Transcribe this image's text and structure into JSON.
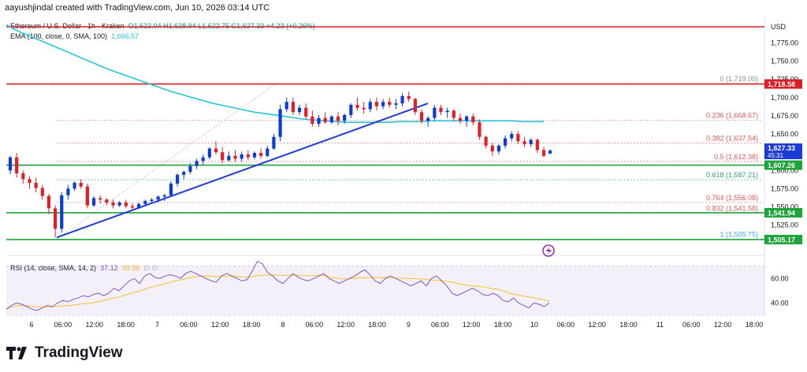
{
  "header": {
    "created_by": "aayushjindal created with TradingView.com, Jun 10, 2026 03:14 UTC"
  },
  "legend": {
    "symbol": "Ethereum / U.S. Dollar · 1h · Kraken",
    "ohlc": "O1,623.04  H1,628.94  L1,622.75  C1,627.33  +4.23 (+0.26%)",
    "ema": "EMA (100, close, 0, SMA, 100)",
    "ema_value": "1,666.57",
    "rsi": "RSI (14, close, SMA, 14, 2)",
    "rsi_value": "37.12",
    "rsi_ma_value": "39.58",
    "rsi_extra": "∅  ∅"
  },
  "colors": {
    "up": "#0c3cd6",
    "down": "#e01f26",
    "ema": "#26c6da",
    "trend": "#1f3bd6",
    "resistance": "#d91f26",
    "support": "#1ea23a",
    "fib": "#e05a5a",
    "rsi": "#7e57c2",
    "rsi_ma": "#f9c02a",
    "price_tag": "#1b3bd2"
  },
  "chart_data": [
    {
      "type": "candlestick",
      "title": "Ethereum / U.S. Dollar · 1h · Kraken",
      "currency": "USD",
      "ylim": [
        1490,
        1810
      ],
      "y_ticks": [
        "1,775.00",
        "1,750.00",
        "1,725.00",
        "1,700.00",
        "1,675.00",
        "1,650.00",
        "1,625.00",
        "1,600.00",
        "1,575.00",
        "1,550.00",
        "1,525.00"
      ],
      "x_ticks": [
        "6",
        "06:00",
        "12:00",
        "18:00",
        "7",
        "06:00",
        "12:00",
        "18:00",
        "8",
        "06:00",
        "12:00",
        "18:00",
        "9",
        "06:00",
        "12:00",
        "18:00",
        "10",
        "06:00",
        "12:00",
        "18:00",
        "11",
        "06:00",
        "12:00",
        "18:00"
      ],
      "candles": [
        [
          1600,
          1620,
          1595,
          1618
        ],
        [
          1618,
          1624,
          1590,
          1596
        ],
        [
          1596,
          1600,
          1582,
          1588
        ],
        [
          1588,
          1592,
          1575,
          1583
        ],
        [
          1583,
          1590,
          1570,
          1576
        ],
        [
          1576,
          1580,
          1560,
          1565
        ],
        [
          1565,
          1568,
          1540,
          1548
        ],
        [
          1548,
          1552,
          1508,
          1520
        ],
        [
          1520,
          1570,
          1515,
          1566
        ],
        [
          1566,
          1580,
          1560,
          1575
        ],
        [
          1575,
          1585,
          1572,
          1583
        ],
        [
          1583,
          1588,
          1575,
          1578
        ],
        [
          1578,
          1582,
          1548,
          1552
        ],
        [
          1552,
          1565,
          1550,
          1562
        ],
        [
          1562,
          1566,
          1555,
          1560
        ],
        [
          1560,
          1562,
          1552,
          1556
        ],
        [
          1556,
          1560,
          1548,
          1552
        ],
        [
          1552,
          1558,
          1550,
          1556
        ],
        [
          1556,
          1560,
          1548,
          1551
        ],
        [
          1551,
          1555,
          1546,
          1549
        ],
        [
          1549,
          1556,
          1547,
          1554
        ],
        [
          1554,
          1560,
          1552,
          1558
        ],
        [
          1558,
          1562,
          1555,
          1560
        ],
        [
          1560,
          1566,
          1556,
          1564
        ],
        [
          1564,
          1568,
          1558,
          1566
        ],
        [
          1566,
          1585,
          1564,
          1582
        ],
        [
          1582,
          1596,
          1578,
          1594
        ],
        [
          1594,
          1600,
          1588,
          1598
        ],
        [
          1598,
          1610,
          1595,
          1606
        ],
        [
          1606,
          1616,
          1602,
          1613
        ],
        [
          1613,
          1622,
          1608,
          1618
        ],
        [
          1618,
          1632,
          1615,
          1630
        ],
        [
          1630,
          1640,
          1622,
          1625
        ],
        [
          1625,
          1632,
          1610,
          1614
        ],
        [
          1614,
          1626,
          1612,
          1620
        ],
        [
          1620,
          1628,
          1612,
          1616
        ],
        [
          1616,
          1626,
          1612,
          1622
        ],
        [
          1622,
          1628,
          1614,
          1618
        ],
        [
          1618,
          1626,
          1615,
          1624
        ],
        [
          1624,
          1630,
          1616,
          1620
        ],
        [
          1620,
          1634,
          1618,
          1630
        ],
        [
          1630,
          1650,
          1628,
          1646
        ],
        [
          1646,
          1690,
          1640,
          1684
        ],
        [
          1684,
          1700,
          1680,
          1694
        ],
        [
          1694,
          1700,
          1676,
          1680
        ],
        [
          1680,
          1690,
          1676,
          1686
        ],
        [
          1686,
          1692,
          1670,
          1674
        ],
        [
          1674,
          1682,
          1660,
          1664
        ],
        [
          1664,
          1676,
          1660,
          1672
        ],
        [
          1672,
          1680,
          1664,
          1666
        ],
        [
          1666,
          1676,
          1664,
          1674
        ],
        [
          1674,
          1680,
          1662,
          1668
        ],
        [
          1668,
          1678,
          1664,
          1676
        ],
        [
          1676,
          1692,
          1672,
          1690
        ],
        [
          1690,
          1700,
          1682,
          1686
        ],
        [
          1686,
          1694,
          1678,
          1684
        ],
        [
          1684,
          1698,
          1680,
          1694
        ],
        [
          1694,
          1700,
          1682,
          1688
        ],
        [
          1688,
          1698,
          1684,
          1694
        ],
        [
          1694,
          1700,
          1686,
          1690
        ],
        [
          1690,
          1698,
          1684,
          1692
        ],
        [
          1692,
          1706,
          1688,
          1702
        ],
        [
          1702,
          1708,
          1694,
          1698
        ],
        [
          1698,
          1700,
          1676,
          1680
        ],
        [
          1680,
          1684,
          1664,
          1668
        ],
        [
          1668,
          1674,
          1660,
          1672
        ],
        [
          1672,
          1690,
          1668,
          1686
        ],
        [
          1686,
          1690,
          1676,
          1680
        ],
        [
          1680,
          1686,
          1672,
          1682
        ],
        [
          1682,
          1684,
          1668,
          1672
        ],
        [
          1672,
          1678,
          1664,
          1668
        ],
        [
          1668,
          1676,
          1660,
          1674
        ],
        [
          1674,
          1678,
          1662,
          1666
        ],
        [
          1666,
          1670,
          1642,
          1646
        ],
        [
          1646,
          1648,
          1630,
          1634
        ],
        [
          1634,
          1638,
          1620,
          1626
        ],
        [
          1626,
          1636,
          1622,
          1634
        ],
        [
          1634,
          1648,
          1630,
          1644
        ],
        [
          1644,
          1654,
          1640,
          1650
        ],
        [
          1650,
          1654,
          1636,
          1640
        ],
        [
          1640,
          1646,
          1632,
          1636
        ],
        [
          1636,
          1644,
          1632,
          1642
        ],
        [
          1642,
          1644,
          1624,
          1628
        ],
        [
          1628,
          1632,
          1618,
          1620
        ]
      ],
      "last_partial_candle": [
        1623.04,
        1628.94,
        1622.75,
        1627.33
      ],
      "ema100": [
        1800,
        1792,
        1786,
        1780,
        1774,
        1768,
        1762,
        1756,
        1750,
        1744,
        1738,
        1733,
        1728,
        1723,
        1718,
        1713,
        1708,
        1704,
        1700,
        1696,
        1692,
        1689,
        1686,
        1683,
        1680,
        1678,
        1676,
        1674,
        1672,
        1670,
        1669,
        1668,
        1667,
        1666,
        1666,
        1666,
        1666,
        1666,
        1667,
        1667,
        1667,
        1668,
        1668,
        1668,
        1668,
        1668,
        1668,
        1668,
        1668,
        1668,
        1667,
        1667,
        1667
      ],
      "horizontal_levels": [
        {
          "price": 1810.0,
          "role": "resistance",
          "color": "#d91f26"
        },
        {
          "price": 1718.58,
          "role": "resistance",
          "color": "#d91f26",
          "tag": "1,718.58"
        },
        {
          "price": 1607.26,
          "role": "support",
          "color": "#1ea23a",
          "tag": "1,607.26"
        },
        {
          "price": 1541.94,
          "role": "support",
          "color": "#1ea23a",
          "tag": "1,541.94"
        },
        {
          "price": 1505.17,
          "role": "support",
          "color": "#1ea23a",
          "tag": "1,505.17"
        }
      ],
      "current_price_tag": {
        "price": "1,627.33",
        "countdown": "45:31"
      },
      "trendline": {
        "from": {
          "x": "6 06:00",
          "y": 1508
        },
        "to": {
          "x": "9 06:00",
          "y": 1692
        }
      },
      "fibonacci": [
        {
          "label": "0 (1,719.00)",
          "level": 0,
          "price": 1719.0
        },
        {
          "label": "0.236 (1,668.67)",
          "level": 0.236,
          "price": 1668.67
        },
        {
          "label": "0.382 (1,637.54)",
          "level": 0.382,
          "price": 1637.54
        },
        {
          "label": "0.5 (1,612.38)",
          "level": 0.5,
          "price": 1612.38
        },
        {
          "label": "0.618 (1,587.21)",
          "level": 0.618,
          "price": 1587.21
        },
        {
          "label": "0.764 (1,556.08)",
          "level": 0.764,
          "price": 1556.08
        },
        {
          "label": "0.832 (1,541.58)",
          "level": 0.832,
          "price": 1541.58
        },
        {
          "label": "1 (1,505.75)",
          "level": 1,
          "price": 1505.75
        }
      ]
    },
    {
      "type": "line",
      "title": "RSI (14, close, SMA, 14, 2)",
      "ylim": [
        30,
        75
      ],
      "y_ticks": [
        "60.00",
        "40.00"
      ],
      "band": [
        30,
        70
      ],
      "series": [
        {
          "name": "RSI",
          "values": [
            35,
            38,
            40,
            39,
            37,
            35,
            34,
            36,
            38,
            37,
            40,
            42,
            41,
            43,
            44,
            46,
            45,
            47,
            48,
            46,
            48,
            52,
            50,
            54,
            58,
            60,
            56,
            62,
            64,
            61,
            60,
            62,
            63,
            62,
            60,
            64,
            66,
            64,
            62,
            60,
            58,
            57,
            62,
            64,
            62,
            60,
            58,
            59,
            66,
            74,
            72,
            65,
            62,
            58,
            56,
            60,
            64,
            61,
            59,
            58,
            60,
            62,
            64,
            60,
            58,
            56,
            58,
            60,
            62,
            65,
            67,
            63,
            58,
            56,
            60,
            62,
            60,
            58,
            56,
            54,
            56,
            58,
            54,
            60,
            62,
            58,
            54,
            48,
            46,
            48,
            50,
            52,
            50,
            47,
            46,
            48,
            46,
            42,
            41,
            44,
            40,
            38,
            36,
            40,
            39,
            37,
            40
          ]
        }
      ]
    }
  ],
  "brand": {
    "name": "TradingView"
  }
}
